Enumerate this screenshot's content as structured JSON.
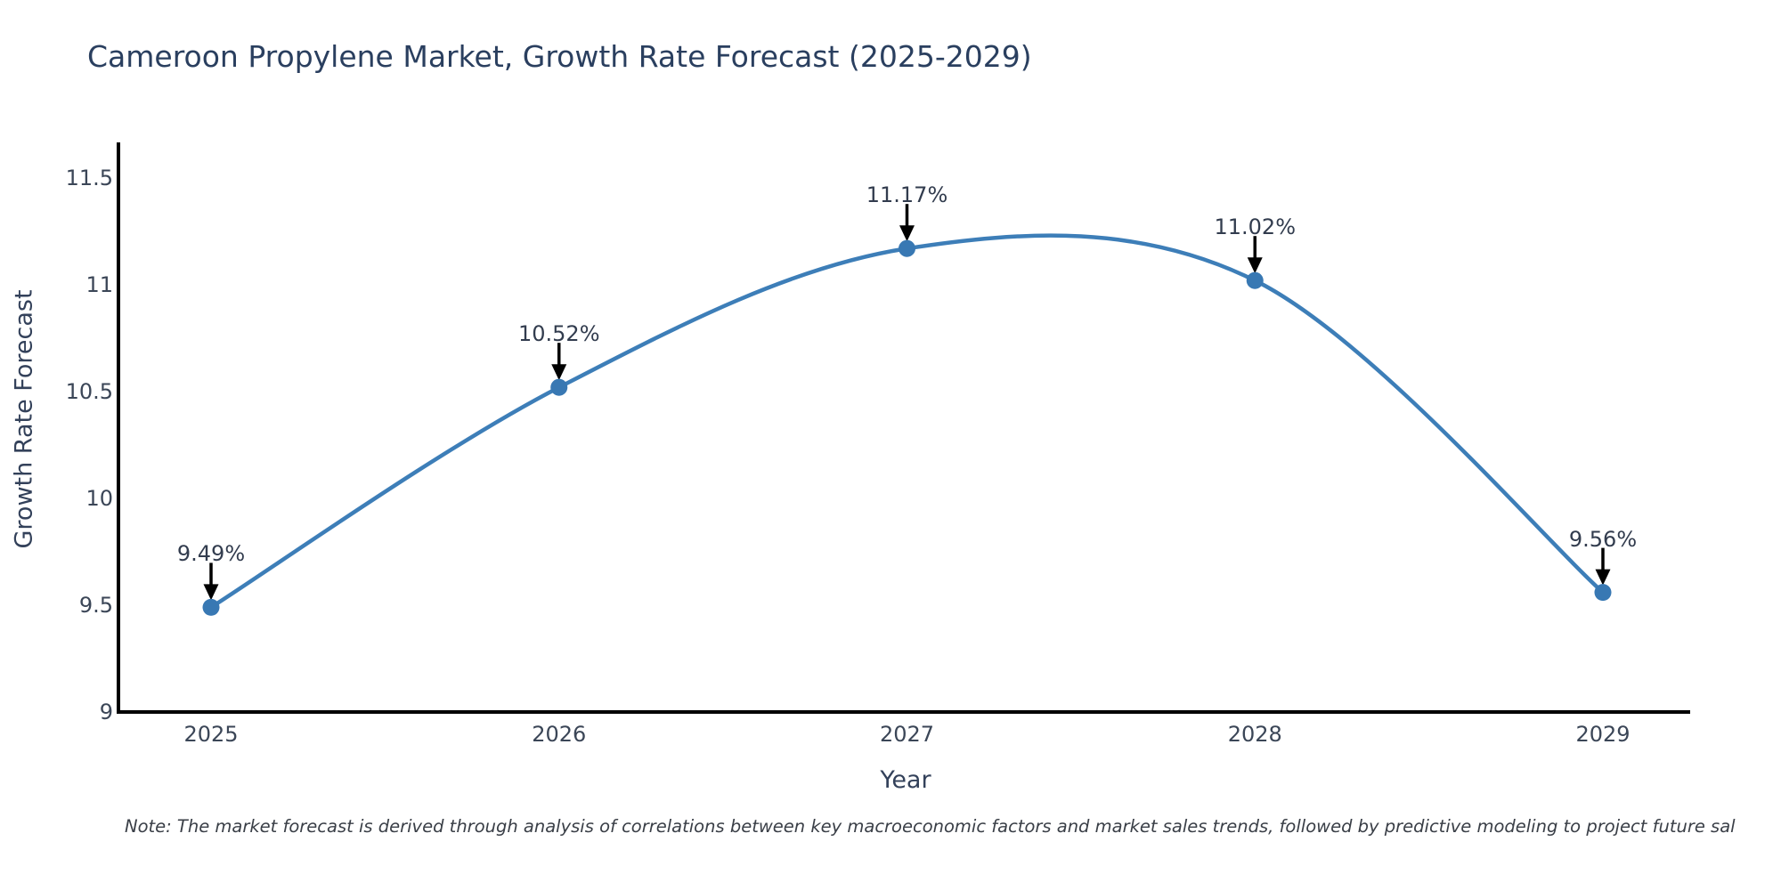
{
  "title": "Cameroon Propylene Market, Growth Rate Forecast (2025-2029)",
  "note": "Note: The market forecast is derived through analysis of correlations between key macroeconomic factors and market sales trends, followed by predictive modeling to project future sal",
  "chart_data": {
    "type": "line",
    "title": "Cameroon Propylene Market, Growth Rate Forecast (2025-2029)",
    "xlabel": "Year",
    "ylabel": "Growth Rate Forecast",
    "categories": [
      "2025",
      "2026",
      "2027",
      "2028",
      "2029"
    ],
    "values": [
      9.49,
      10.52,
      11.17,
      11.02,
      9.56
    ],
    "point_labels": [
      "9.49%",
      "10.52%",
      "11.17%",
      "11.02%",
      "9.56%"
    ],
    "ylim": [
      9,
      11.5
    ],
    "y_ticks": [
      9,
      9.5,
      10,
      10.5,
      11,
      11.5
    ],
    "y_tick_labels": [
      "9",
      "9.5",
      "10",
      "10.5",
      "11",
      "11.5"
    ],
    "grid": false,
    "legend": "none",
    "smooth": true,
    "annotation_style": "label-with-down-arrow"
  },
  "colors": {
    "line": "#3d7eb8",
    "marker": "#3878b3",
    "axis": "#000000",
    "arrow": "#000000",
    "title_text": "#2a3f5f",
    "tick_text": "#3b4657",
    "background": "#ffffff"
  }
}
